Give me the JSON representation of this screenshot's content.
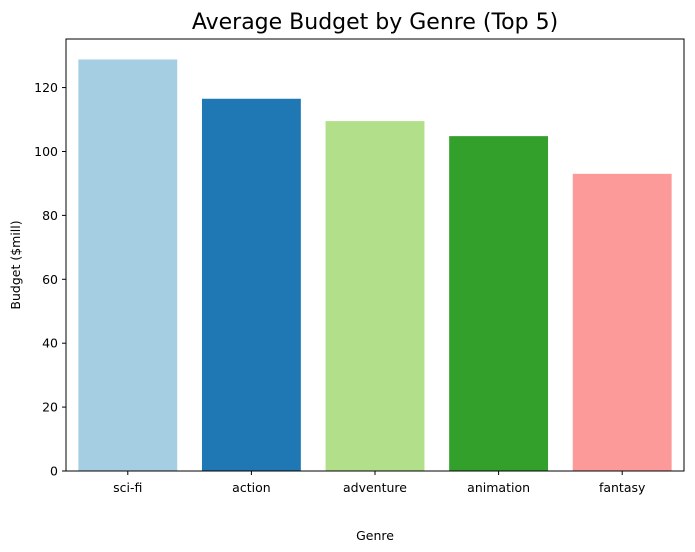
{
  "chart_data": {
    "type": "bar",
    "title": "Average Budget by Genre (Top 5)",
    "xlabel": "Genre",
    "ylabel": "Budget ($mill)",
    "categories": [
      "sci-fi",
      "action",
      "adventure",
      "animation",
      "fantasy"
    ],
    "values": [
      128.8,
      116.5,
      109.5,
      104.8,
      93.0
    ],
    "colors": [
      "#a6cee3",
      "#1f78b4",
      "#b2df8a",
      "#33a02c",
      "#fb9a99"
    ],
    "ylim": [
      0,
      135.2
    ],
    "yticks": [
      0,
      20,
      40,
      60,
      80,
      100,
      120
    ],
    "grid": false,
    "legend": "none"
  }
}
